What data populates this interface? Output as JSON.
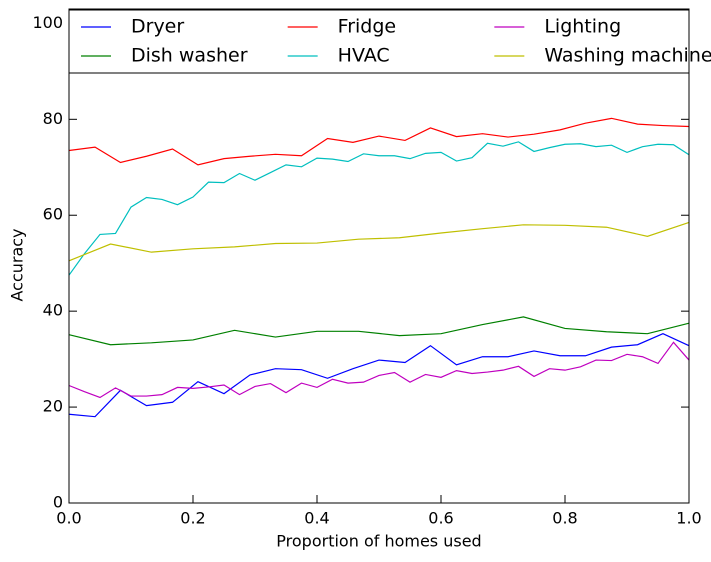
{
  "chart_data": {
    "type": "line",
    "x_label": "Proportion of homes used",
    "y_label": "Accuracy",
    "xlim": [
      0,
      1
    ],
    "ylim": [
      0,
      103
    ],
    "xticks": [
      {
        "value": 0,
        "label": "0.0"
      },
      0.2,
      0.4,
      0.6,
      0.8,
      {
        "value": 1,
        "label": "1.0"
      }
    ],
    "yticks": [
      0,
      20,
      40,
      60,
      80,
      100
    ],
    "legend": {
      "loc": "upper center",
      "ncol": 3
    },
    "series": [
      {
        "name": "Dryer",
        "color": "#0000ff",
        "x": [
          0,
          0.042,
          0.083,
          0.125,
          0.167,
          0.208,
          0.25,
          0.292,
          0.333,
          0.375,
          0.417,
          0.458,
          0.5,
          0.542,
          0.583,
          0.625,
          0.667,
          0.708,
          0.75,
          0.792,
          0.833,
          0.875,
          0.917,
          0.958,
          1
        ],
        "values": [
          18.5,
          18,
          23.5,
          20.3,
          21,
          25.3,
          22.8,
          26.7,
          28,
          27.8,
          26,
          28,
          29.8,
          29.3,
          32.8,
          28.8,
          30.5,
          30.5,
          31.7,
          30.7,
          30.7,
          32.5,
          33,
          35.3,
          32.8
        ]
      },
      {
        "name": "Dish washer",
        "color": "#008000",
        "x": [
          0,
          0.067,
          0.133,
          0.2,
          0.267,
          0.333,
          0.4,
          0.467,
          0.533,
          0.6,
          0.667,
          0.733,
          0.8,
          0.867,
          0.933,
          1
        ],
        "values": [
          35.1,
          33,
          33.4,
          34,
          36,
          34.6,
          35.8,
          35.8,
          34.9,
          35.3,
          37.2,
          38.8,
          36.4,
          35.7,
          35.3,
          37.5
        ]
      },
      {
        "name": "Fridge",
        "color": "#ff0000",
        "x": [
          0,
          0.042,
          0.083,
          0.125,
          0.167,
          0.208,
          0.25,
          0.292,
          0.333,
          0.375,
          0.417,
          0.458,
          0.5,
          0.542,
          0.583,
          0.625,
          0.667,
          0.708,
          0.75,
          0.792,
          0.833,
          0.875,
          0.917,
          0.958,
          1
        ],
        "values": [
          73.5,
          74.2,
          71,
          72.3,
          73.8,
          70.5,
          71.8,
          72.3,
          72.7,
          72.4,
          76,
          75.2,
          76.5,
          75.6,
          78.2,
          76.4,
          77,
          76.3,
          76.9,
          77.8,
          79.2,
          80.2,
          79,
          78.7,
          78.5
        ]
      },
      {
        "name": "HVAC",
        "color": "#00bfbf",
        "x": [
          0,
          0.025,
          0.05,
          0.075,
          0.1,
          0.125,
          0.15,
          0.175,
          0.2,
          0.225,
          0.25,
          0.275,
          0.3,
          0.325,
          0.35,
          0.375,
          0.4,
          0.425,
          0.45,
          0.475,
          0.5,
          0.525,
          0.55,
          0.575,
          0.6,
          0.625,
          0.65,
          0.675,
          0.7,
          0.725,
          0.75,
          0.775,
          0.8,
          0.825,
          0.85,
          0.875,
          0.9,
          0.925,
          0.95,
          0.975,
          1
        ],
        "values": [
          47.5,
          52,
          56,
          56.2,
          61.7,
          63.7,
          63.3,
          62.2,
          63.8,
          66.9,
          66.8,
          68.7,
          67.3,
          68.9,
          70.5,
          70.1,
          71.9,
          71.7,
          71.2,
          72.8,
          72.4,
          72.4,
          71.8,
          72.9,
          73.1,
          71.3,
          72,
          75,
          74.4,
          75.3,
          73.3,
          74.1,
          74.8,
          74.9,
          74.3,
          74.6,
          73.1,
          74.3,
          74.8,
          74.7,
          72.6
        ]
      },
      {
        "name": "Lighting",
        "color": "#bf00bf",
        "x": [
          0,
          0.025,
          0.05,
          0.075,
          0.1,
          0.125,
          0.15,
          0.175,
          0.2,
          0.225,
          0.25,
          0.275,
          0.3,
          0.325,
          0.35,
          0.375,
          0.4,
          0.425,
          0.45,
          0.475,
          0.5,
          0.525,
          0.55,
          0.575,
          0.6,
          0.625,
          0.65,
          0.675,
          0.7,
          0.725,
          0.75,
          0.775,
          0.8,
          0.825,
          0.85,
          0.875,
          0.9,
          0.925,
          0.95,
          0.975,
          1
        ],
        "values": [
          24.5,
          23.2,
          22,
          24,
          22.3,
          22.3,
          22.6,
          24.1,
          23.9,
          24.2,
          24.6,
          22.6,
          24.3,
          24.9,
          23,
          25,
          24.1,
          25.8,
          25,
          25.2,
          26.6,
          27.2,
          25.2,
          26.8,
          26.2,
          27.6,
          27,
          27.3,
          27.7,
          28.5,
          26.4,
          28,
          27.7,
          28.4,
          29.8,
          29.7,
          31,
          30.5,
          29.1,
          33.5,
          29.8
        ]
      },
      {
        "name": "Washing machine",
        "color": "#bfbf00",
        "x": [
          0,
          0.067,
          0.133,
          0.2,
          0.267,
          0.333,
          0.4,
          0.467,
          0.533,
          0.6,
          0.667,
          0.733,
          0.8,
          0.867,
          0.933,
          1
        ],
        "values": [
          50.5,
          54,
          52.3,
          53,
          53.4,
          54.1,
          54.2,
          55,
          55.3,
          56.3,
          57.2,
          58,
          57.9,
          57.5,
          55.6,
          58.5
        ]
      }
    ]
  }
}
